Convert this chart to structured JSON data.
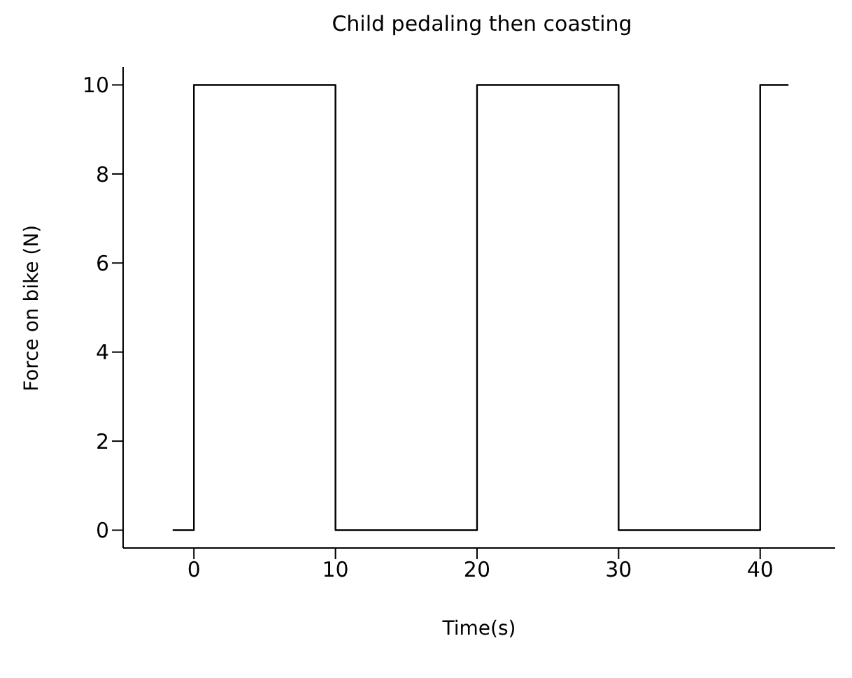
{
  "chart_data": {
    "type": "step",
    "title": "Child pedaling then coasting",
    "xlabel": "Time(s)",
    "ylabel": "Force on bike (N)",
    "x": [
      -1.5,
      0,
      10,
      20,
      30,
      40,
      42
    ],
    "series": [
      {
        "color": "#000000",
        "values": [
          0,
          10,
          0,
          10,
          0,
          10,
          10
        ]
      }
    ],
    "xlim": [
      -5,
      45.3
    ],
    "xticks": [
      0,
      10,
      20,
      30,
      40
    ],
    "ylim": [
      -0.4,
      10.4
    ],
    "yticks": [
      0,
      2,
      4,
      6,
      8,
      10
    ],
    "grid": false,
    "legend": false,
    "marker": "none",
    "line_style": "solid"
  }
}
